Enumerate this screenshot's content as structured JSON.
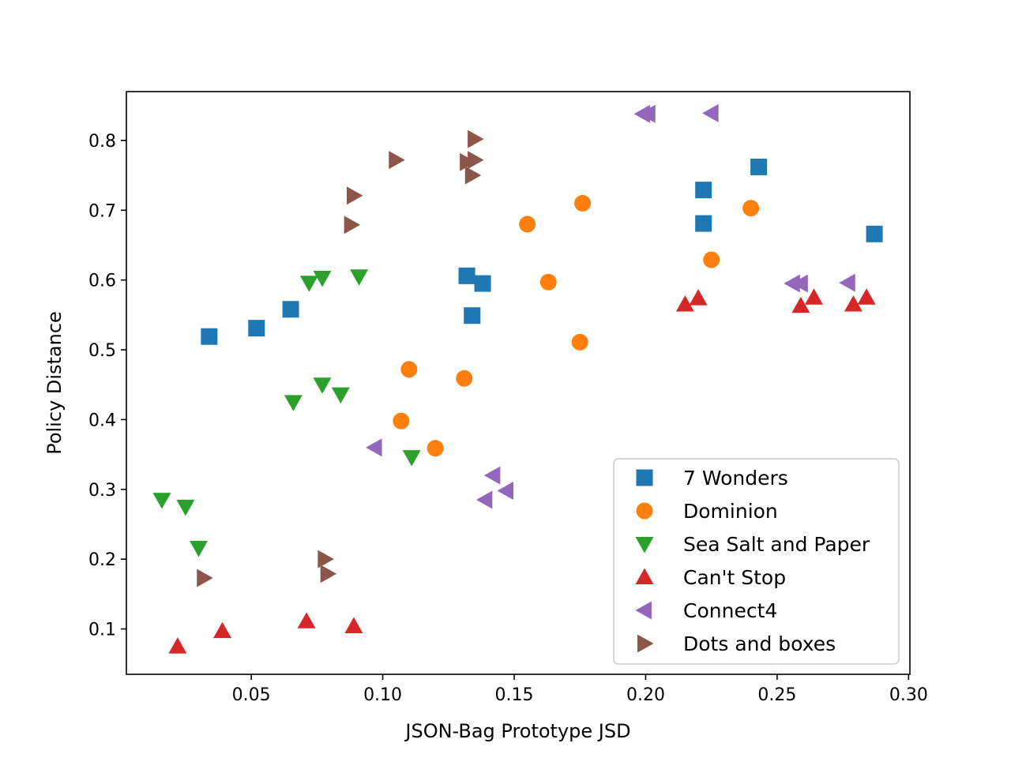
{
  "chart_data": {
    "type": "scatter",
    "title": "",
    "xlabel": "JSON-Bag Prototype JSD",
    "ylabel": "Policy Distance",
    "xlim": [
      0.0025,
      0.3005
    ],
    "ylim": [
      0.035,
      0.87
    ],
    "xticks": [
      0.05,
      0.1,
      0.15,
      0.2,
      0.25,
      0.3
    ],
    "xtick_labels": [
      "0.05",
      "0.10",
      "0.15",
      "0.20",
      "0.25",
      "0.30"
    ],
    "yticks": [
      0.1,
      0.2,
      0.3,
      0.4,
      0.5,
      0.6,
      0.7,
      0.8
    ],
    "ytick_labels": [
      "0.1",
      "0.2",
      "0.3",
      "0.4",
      "0.5",
      "0.6",
      "0.7",
      "0.8"
    ],
    "grid": false,
    "legend_position": "lower-right",
    "series": [
      {
        "name": "7 Wonders",
        "marker": "square",
        "color": "#1f77b4",
        "points": [
          [
            0.034,
            0.519
          ],
          [
            0.052,
            0.531
          ],
          [
            0.065,
            0.558
          ],
          [
            0.132,
            0.606
          ],
          [
            0.138,
            0.595
          ],
          [
            0.134,
            0.549
          ],
          [
            0.222,
            0.729
          ],
          [
            0.222,
            0.681
          ],
          [
            0.243,
            0.762
          ],
          [
            0.287,
            0.666
          ]
        ]
      },
      {
        "name": "Dominion",
        "marker": "circle",
        "color": "#ff7f0e",
        "points": [
          [
            0.11,
            0.472
          ],
          [
            0.107,
            0.398
          ],
          [
            0.12,
            0.359
          ],
          [
            0.131,
            0.459
          ],
          [
            0.155,
            0.68
          ],
          [
            0.163,
            0.597
          ],
          [
            0.176,
            0.71
          ],
          [
            0.175,
            0.511
          ],
          [
            0.225,
            0.629
          ],
          [
            0.24,
            0.703
          ]
        ]
      },
      {
        "name": "Sea Salt and Paper",
        "marker": "triangle-down",
        "color": "#2ca02c",
        "points": [
          [
            0.016,
            0.285
          ],
          [
            0.025,
            0.275
          ],
          [
            0.03,
            0.216
          ],
          [
            0.066,
            0.425
          ],
          [
            0.072,
            0.596
          ],
          [
            0.077,
            0.603
          ],
          [
            0.077,
            0.45
          ],
          [
            0.084,
            0.436
          ],
          [
            0.091,
            0.605
          ],
          [
            0.111,
            0.346
          ]
        ]
      },
      {
        "name": "Can't Stop",
        "marker": "triangle-up",
        "color": "#d62728",
        "points": [
          [
            0.022,
            0.075
          ],
          [
            0.039,
            0.097
          ],
          [
            0.071,
            0.111
          ],
          [
            0.089,
            0.104
          ],
          [
            0.215,
            0.565
          ],
          [
            0.22,
            0.574
          ],
          [
            0.259,
            0.563
          ],
          [
            0.264,
            0.575
          ],
          [
            0.279,
            0.565
          ],
          [
            0.284,
            0.575
          ]
        ]
      },
      {
        "name": "Connect4",
        "marker": "triangle-left",
        "color": "#9467bd",
        "points": [
          [
            0.097,
            0.36
          ],
          [
            0.139,
            0.285
          ],
          [
            0.142,
            0.32
          ],
          [
            0.147,
            0.298
          ],
          [
            0.199,
            0.838
          ],
          [
            0.201,
            0.838
          ],
          [
            0.225,
            0.839
          ],
          [
            0.256,
            0.595
          ],
          [
            0.259,
            0.595
          ],
          [
            0.277,
            0.596
          ]
        ]
      },
      {
        "name": "Dots and boxes",
        "marker": "triangle-right",
        "color": "#8c564b",
        "points": [
          [
            0.032,
            0.173
          ],
          [
            0.078,
            0.2
          ],
          [
            0.079,
            0.179
          ],
          [
            0.089,
            0.721
          ],
          [
            0.088,
            0.679
          ],
          [
            0.105,
            0.772
          ],
          [
            0.132,
            0.769
          ],
          [
            0.135,
            0.802
          ],
          [
            0.135,
            0.772
          ],
          [
            0.134,
            0.75
          ]
        ]
      }
    ]
  }
}
